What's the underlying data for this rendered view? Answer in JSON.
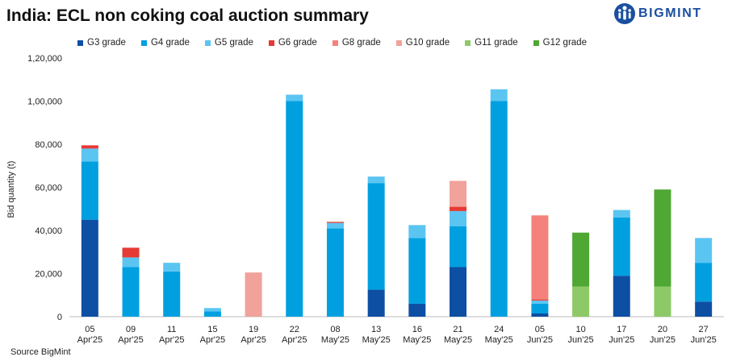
{
  "header": {
    "title": "India: ECL non coking coal auction summary",
    "logo_text": "BIGMINT"
  },
  "footer": {
    "source": "Source BigMint"
  },
  "colors": {
    "G3 grade": "#0d4fa3",
    "G4 grade": "#00a0e0",
    "G5 grade": "#5bc5f2",
    "G6 grade": "#e63a35",
    "G8 grade": "#f4827a",
    "G10 grade": "#f0a29b",
    "G11 grade": "#8dc966",
    "G12 grade": "#4fa734",
    "logo": "#1a4fa0"
  },
  "chart_data": {
    "type": "bar",
    "stacked": true,
    "title": "India: ECL non coking coal auction summary",
    "xlabel": "",
    "ylabel": "Bid quantity (t)",
    "ylim": [
      0,
      120000
    ],
    "yticks": [
      0,
      20000,
      40000,
      60000,
      80000,
      100000,
      120000
    ],
    "ytick_labels": [
      "0",
      "20,000",
      "40,000",
      "60,000",
      "80,000",
      "1,00,000",
      "1,20,000"
    ],
    "legend_position": "top",
    "categories": [
      [
        "05",
        "Apr'25"
      ],
      [
        "09",
        "Apr'25"
      ],
      [
        "11",
        "Apr'25"
      ],
      [
        "15",
        "Apr'25"
      ],
      [
        "19",
        "Apr'25"
      ],
      [
        "22",
        "Apr'25"
      ],
      [
        "08",
        "May'25"
      ],
      [
        "13",
        "May'25"
      ],
      [
        "16",
        "May'25"
      ],
      [
        "21",
        "May'25"
      ],
      [
        "24",
        "May'25"
      ],
      [
        "05",
        "Jun'25"
      ],
      [
        "10",
        "Jun'25"
      ],
      [
        "17",
        "Jun'25"
      ],
      [
        "20",
        "Jun'25"
      ],
      [
        "27",
        "Jun'25"
      ]
    ],
    "series": [
      {
        "name": "G3 grade",
        "values": [
          45000,
          0,
          0,
          0,
          0,
          0,
          0,
          12500,
          6000,
          23000,
          0,
          1500,
          0,
          19000,
          0,
          7000
        ]
      },
      {
        "name": "G4 grade",
        "values": [
          27000,
          23000,
          21000,
          2500,
          0,
          100000,
          41000,
          49500,
          30500,
          19000,
          100000,
          4500,
          0,
          27000,
          0,
          18000
        ]
      },
      {
        "name": "G5 grade",
        "values": [
          6000,
          4500,
          4000,
          1500,
          0,
          3000,
          2500,
          3000,
          6000,
          7000,
          5500,
          1500,
          0,
          3500,
          0,
          11500
        ]
      },
      {
        "name": "G6 grade",
        "values": [
          1500,
          4500,
          0,
          0,
          0,
          0,
          500,
          0,
          0,
          2000,
          0,
          500,
          0,
          0,
          0,
          0
        ]
      },
      {
        "name": "G8 grade",
        "values": [
          0,
          0,
          0,
          0,
          0,
          0,
          0,
          0,
          0,
          0,
          0,
          39000,
          0,
          0,
          0,
          0
        ]
      },
      {
        "name": "G10 grade",
        "values": [
          0,
          0,
          0,
          0,
          20500,
          0,
          0,
          0,
          0,
          12000,
          0,
          0,
          0,
          0,
          0,
          0
        ]
      },
      {
        "name": "G11 grade",
        "values": [
          0,
          0,
          0,
          0,
          0,
          0,
          0,
          0,
          0,
          0,
          0,
          0,
          14000,
          0,
          14000,
          0
        ]
      },
      {
        "name": "G12 grade",
        "values": [
          0,
          0,
          0,
          0,
          0,
          0,
          0,
          0,
          0,
          0,
          0,
          0,
          25000,
          0,
          45000,
          0
        ]
      }
    ]
  }
}
